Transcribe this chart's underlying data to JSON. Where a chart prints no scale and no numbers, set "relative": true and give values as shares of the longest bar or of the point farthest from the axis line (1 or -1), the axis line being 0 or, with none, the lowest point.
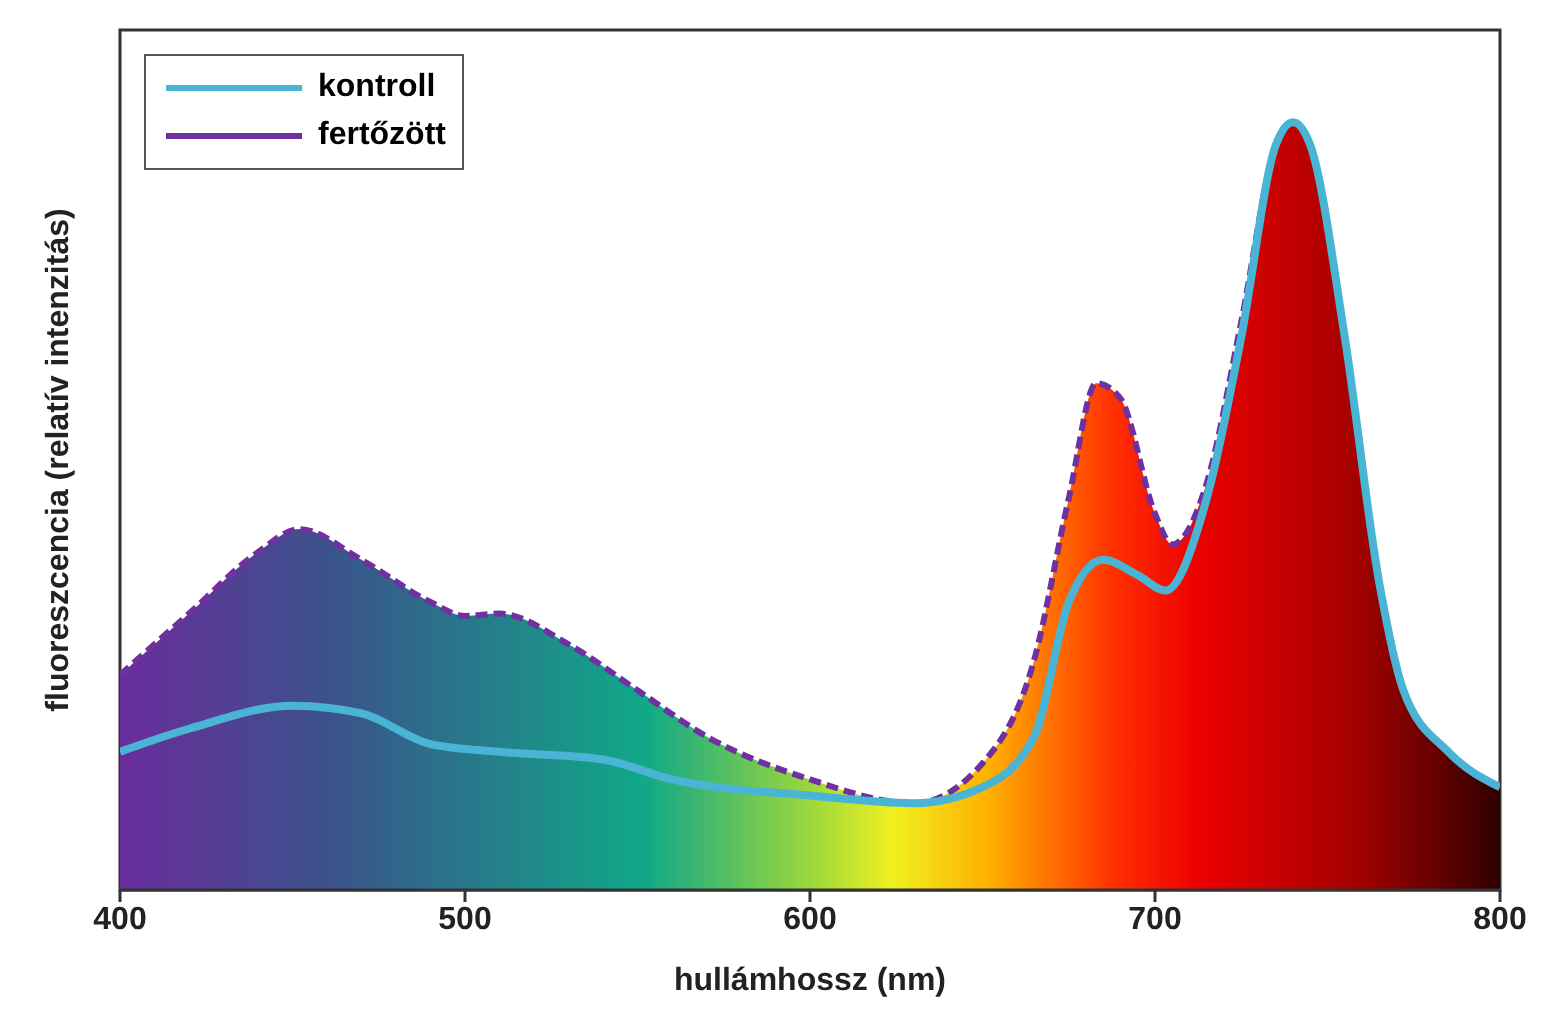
{
  "chart_data": {
    "type": "line",
    "relative": true,
    "xlabel": "hullámhossz (nm)",
    "ylabel": "fluoreszcencia (relatív intenzitás)",
    "xlim": [
      400,
      800
    ],
    "xticks": [
      400,
      500,
      600,
      700,
      800
    ],
    "legend": "top left",
    "grid": false,
    "series": [
      {
        "name": "kontroll",
        "color": "#4ab4d4",
        "line_style": "solid",
        "x": [
          400,
          420,
          450,
          470,
          490,
          510,
          540,
          560,
          600,
          630,
          650,
          665,
          675,
          685,
          695,
          703,
          715,
          725,
          735,
          740,
          745,
          755,
          765,
          772,
          785,
          800
        ],
        "values": [
          0.18,
          0.21,
          0.24,
          0.23,
          0.19,
          0.18,
          0.17,
          0.144,
          0.123,
          0.113,
          0.134,
          0.2,
          0.375,
          0.43,
          0.41,
          0.39,
          0.51,
          0.72,
          0.97,
          1,
          0.97,
          0.72,
          0.4,
          0.26,
          0.18,
          0.134
        ]
      },
      {
        "name": "fertőzött",
        "color": "#7030a0",
        "type": "area",
        "line_style": "dashed",
        "x": [
          400,
          420,
          440,
          452,
          470,
          490,
          500,
          510,
          530,
          550,
          570,
          600,
          630,
          650,
          665,
          675,
          683,
          690,
          700,
          705,
          715,
          725,
          735,
          740,
          745,
          755,
          765,
          772,
          785,
          800
        ],
        "values": [
          0.28,
          0.36,
          0.44,
          0.47,
          0.43,
          0.375,
          0.357,
          0.36,
          0.32,
          0.26,
          0.2,
          0.144,
          0.113,
          0.165,
          0.3,
          0.51,
          0.66,
          0.64,
          0.49,
          0.45,
          0.53,
          0.74,
          0.97,
          1,
          0.97,
          0.72,
          0.4,
          0.26,
          0.18,
          0.134
        ]
      }
    ]
  }
}
